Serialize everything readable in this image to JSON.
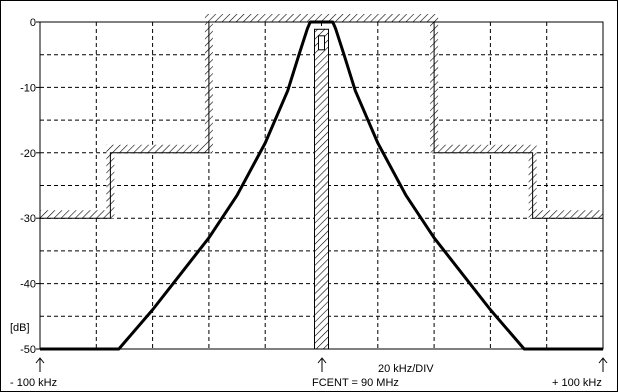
{
  "chart_data": {
    "type": "line",
    "x_unit": "kHz offset",
    "y_unit": "dB",
    "xlim": [
      -100,
      100
    ],
    "ylim": [
      -50,
      0
    ],
    "x_gridlines": [
      -80,
      -60,
      -40,
      -20,
      0,
      20,
      40,
      60,
      80
    ],
    "y_ticks": [
      {
        "value": 0,
        "label": "0"
      },
      {
        "value": -10,
        "label": "-10"
      },
      {
        "value": -20,
        "label": "-20"
      },
      {
        "value": -30,
        "label": "-30"
      },
      {
        "value": -40,
        "label": "-40"
      },
      {
        "value": -50,
        "label": "-50"
      }
    ],
    "y_unit_label": "[dB]",
    "x_left_label": "- 100 kHz",
    "x_center_label": "FCENT = 90 MHz",
    "x_right_label": "+ 100 kHz",
    "scale_label": "20 kHz/DIV",
    "grid": true,
    "series": [
      {
        "points": [
          [
            -100,
            -50
          ],
          [
            -72,
            -50
          ],
          [
            -60,
            -44
          ],
          [
            -50,
            -38.5
          ],
          [
            -40,
            -33
          ],
          [
            -30,
            -26.5
          ],
          [
            -20,
            -18.5
          ],
          [
            -12,
            -10.5
          ],
          [
            -8,
            -5
          ],
          [
            -5,
            -1
          ],
          [
            -4,
            0
          ],
          [
            -3,
            0
          ],
          [
            3,
            0
          ],
          [
            4,
            0
          ],
          [
            5,
            -1
          ],
          [
            8,
            -5
          ],
          [
            12,
            -10.5
          ],
          [
            20,
            -18.5
          ],
          [
            30,
            -26.5
          ],
          [
            40,
            -33
          ],
          [
            50,
            -38.5
          ],
          [
            60,
            -44
          ],
          [
            72,
            -50
          ],
          [
            100,
            -50
          ]
        ]
      }
    ],
    "mask_lower": [
      [
        -100,
        -29.5
      ],
      [
        -100,
        -50
      ],
      [
        -1,
        -50
      ],
      [
        -1,
        -1.5
      ],
      [
        1,
        -1.5
      ],
      [
        1,
        -50
      ],
      [
        100,
        -50
      ]
    ],
    "mask_upper": [
      [
        -100,
        -30
      ],
      [
        -75,
        -30
      ],
      [
        -75,
        -20
      ],
      [
        -40,
        -20
      ],
      [
        -40,
        0
      ],
      [
        40,
        0
      ],
      [
        40,
        -20
      ],
      [
        75,
        -20
      ],
      [
        75,
        -30
      ],
      [
        100,
        -30
      ]
    ]
  }
}
